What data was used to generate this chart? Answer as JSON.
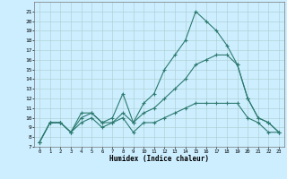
{
  "xlabel": "Humidex (Indice chaleur)",
  "bg_color": "#cceeff",
  "line_color": "#2d7a6e",
  "grid_color": "#aacccc",
  "xlim": [
    -0.5,
    23.5
  ],
  "ylim": [
    7,
    22
  ],
  "xticks": [
    0,
    1,
    2,
    3,
    4,
    5,
    6,
    7,
    8,
    9,
    10,
    11,
    12,
    13,
    14,
    15,
    16,
    17,
    18,
    19,
    20,
    21,
    22,
    23
  ],
  "yticks": [
    7,
    8,
    9,
    10,
    11,
    12,
    13,
    14,
    15,
    16,
    17,
    18,
    19,
    20,
    21
  ],
  "series": {
    "max": {
      "x": [
        0,
        1,
        2,
        3,
        4,
        5,
        6,
        7,
        8,
        9,
        10,
        11,
        12,
        13,
        14,
        15,
        16,
        17,
        18,
        19,
        20,
        21,
        22,
        23
      ],
      "y": [
        7.5,
        9.5,
        9.5,
        8.5,
        10.5,
        10.5,
        9.5,
        10.0,
        12.5,
        9.5,
        11.5,
        12.5,
        15.0,
        16.5,
        18.0,
        21.0,
        20.0,
        19.0,
        17.5,
        15.5,
        12.0,
        10.0,
        9.5,
        8.5
      ]
    },
    "mean": {
      "x": [
        0,
        1,
        2,
        3,
        4,
        5,
        6,
        7,
        8,
        9,
        10,
        11,
        12,
        13,
        14,
        15,
        16,
        17,
        18,
        19,
        20,
        21,
        22,
        23
      ],
      "y": [
        7.5,
        9.5,
        9.5,
        8.5,
        10.0,
        10.5,
        9.5,
        9.5,
        10.5,
        9.5,
        10.5,
        11.0,
        12.0,
        13.0,
        14.0,
        15.5,
        16.0,
        16.5,
        16.5,
        15.5,
        12.0,
        10.0,
        9.5,
        8.5
      ]
    },
    "min": {
      "x": [
        0,
        1,
        2,
        3,
        4,
        5,
        6,
        7,
        8,
        9,
        10,
        11,
        12,
        13,
        14,
        15,
        16,
        17,
        18,
        19,
        20,
        21,
        22,
        23
      ],
      "y": [
        7.5,
        9.5,
        9.5,
        8.5,
        9.5,
        10.0,
        9.0,
        9.5,
        10.0,
        8.5,
        9.5,
        9.5,
        10.0,
        10.5,
        11.0,
        11.5,
        11.5,
        11.5,
        11.5,
        11.5,
        10.0,
        9.5,
        8.5,
        8.5
      ]
    }
  }
}
